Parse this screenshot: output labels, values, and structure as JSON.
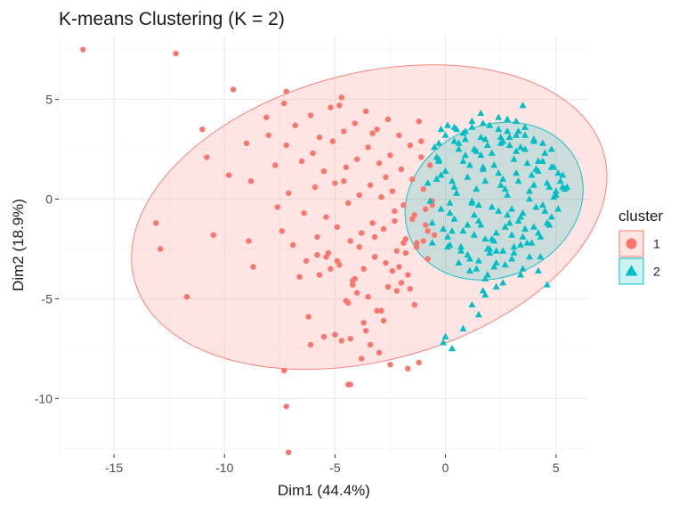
{
  "chart_data": {
    "type": "scatter",
    "title": "K-means Clustering (K = 2)",
    "xlabel": "Dim1 (44.4%)",
    "ylabel": "Dim2 (18.9%)",
    "xlim": [
      -17.5,
      6.5
    ],
    "ylim": [
      -12.8,
      8.2
    ],
    "x_ticks": [
      -15,
      -10,
      -5,
      0,
      5
    ],
    "y_ticks": [
      -10,
      -5,
      0,
      5
    ],
    "x_tick_labels": [
      "-15",
      "-10",
      "-5",
      "0",
      "5"
    ],
    "y_tick_labels": [
      "-10",
      "-5",
      "0",
      "5"
    ],
    "grid": true,
    "legend": {
      "title": "cluster",
      "position": "right",
      "entries": [
        {
          "label": "1",
          "color": "#F8766D",
          "shape": "circle"
        },
        {
          "label": "2",
          "color": "#00BFC4",
          "shape": "triangle"
        }
      ]
    },
    "colors": {
      "cluster1": "#F8766D",
      "cluster1_fill": "#F8766D",
      "cluster2": "#00BFC4",
      "cluster2_fill": "#00BFC4"
    },
    "series": [
      {
        "name": "1",
        "shape": "circle",
        "ellipse": {
          "cx": -3.45,
          "cy": -0.9,
          "rx": 11.0,
          "ry": 7.2,
          "angle_deg": -15
        },
        "x": [
          -16.4,
          -12.2,
          -13.1,
          -12.9,
          -11.7,
          -11.0,
          -10.8,
          -10.5,
          -9.6,
          -9.8,
          -8.9,
          -9.0,
          -8.8,
          -8.7,
          -8.1,
          -8.0,
          -7.7,
          -7.6,
          -7.4,
          -7.3,
          -7.2,
          -7.2,
          -7.1,
          -6.9,
          -6.8,
          -6.5,
          -6.4,
          -6.3,
          -6.1,
          -6.0,
          -5.9,
          -5.8,
          -5.7,
          -5.5,
          -5.4,
          -5.3,
          -5.2,
          -5.1,
          -5.0,
          -4.9,
          -4.8,
          -4.7,
          -4.6,
          -4.5,
          -4.4,
          -4.3,
          -4.2,
          -4.1,
          -4.0,
          -3.9,
          -3.8,
          -3.7,
          -3.6,
          -3.5,
          -3.4,
          -3.3,
          -3.2,
          -3.1,
          -3.0,
          -2.9,
          -2.8,
          -2.7,
          -2.6,
          -2.5,
          -2.4,
          -2.3,
          -2.2,
          -2.1,
          -2.0,
          -1.9,
          -1.8,
          -1.7,
          -1.6,
          -1.5,
          -1.4,
          -1.3,
          -1.2,
          -1.1,
          -1.0,
          -0.9,
          -0.8,
          -0.7,
          -0.6,
          -0.5,
          -5.2,
          -4.8,
          -4.6,
          -4.2,
          -3.9,
          -3.3,
          -2.7,
          -2.3,
          -1.9,
          -1.6,
          -1.1,
          -4.4,
          -3.6,
          -2.6,
          -6.2,
          -5.7,
          -4.1,
          -3.2,
          -2.2,
          -1.8,
          -1.4,
          -0.9,
          -5.4,
          -4.9,
          -4.0,
          -3.7,
          -3.1,
          -2.4,
          -2.0,
          -1.5,
          -6.6,
          -5.8,
          -5.0,
          -4.5,
          -3.5,
          -2.8,
          -2.1,
          -1.3,
          -0.8,
          -4.7,
          -4.3,
          -3.8,
          -3.0,
          -2.5,
          -1.7,
          -4.4,
          -3.4,
          -2.9,
          -1.2,
          -1.0,
          -0.6,
          -7.2,
          -7.1,
          -4.3,
          -7.3,
          -6.1,
          -5.5
        ],
        "y": [
          7.5,
          7.3,
          -1.2,
          -2.5,
          -4.9,
          3.5,
          2.1,
          -1.8,
          5.5,
          1.2,
          -2.1,
          2.8,
          0.9,
          -3.4,
          4.1,
          3.2,
          1.7,
          -0.4,
          -1.6,
          4.8,
          5.4,
          2.7,
          0.3,
          -2.3,
          3.7,
          1.9,
          -0.7,
          -3.1,
          4.2,
          2.3,
          0.6,
          -1.9,
          3.1,
          1.4,
          -0.9,
          -2.7,
          4.6,
          2.9,
          0.8,
          -1.4,
          -3.3,
          5.1,
          3.4,
          1.6,
          -0.2,
          -2.1,
          -4.1,
          3.8,
          2.0,
          0.2,
          -1.7,
          -3.5,
          4.4,
          2.6,
          0.7,
          -1.2,
          -2.9,
          3.5,
          1.8,
          0.1,
          -1.5,
          -3.2,
          4.0,
          2.2,
          0.4,
          -1.1,
          -2.6,
          3.2,
          1.5,
          -0.3,
          -2.0,
          -3.8,
          2.7,
          1.0,
          -0.8,
          -2.4,
          3.9,
          2.1,
          0.5,
          -1.3,
          -3.0,
          1.7,
          -0.1,
          -1.8,
          -3.5,
          4.7,
          0.9,
          -4.3,
          -2.4,
          3.3,
          1.1,
          -0.6,
          -2.2,
          -4.5,
          2.9,
          -5.2,
          -6.6,
          -4.4,
          -5.9,
          -3.8,
          -4.0,
          -1.9,
          -4.6,
          -2.7,
          -5.3,
          -0.5,
          -2.9,
          -3.1,
          -4.7,
          -6.2,
          -5.6,
          -3.6,
          -4.2,
          -1.0,
          -3.9,
          -2.8,
          -6.8,
          -5.1,
          -4.9,
          -6.1,
          -3.4,
          -2.2,
          -1.6,
          -7.1,
          -7.0,
          -8.0,
          -7.7,
          -8.3,
          -8.5,
          -9.3,
          -7.3,
          -5.6,
          -8.2,
          -2.1,
          -0.3,
          -10.4,
          -12.7,
          -9.3,
          -8.6,
          -7.3,
          -6.9
        ]
      },
      {
        "name": "2",
        "shape": "triangle",
        "ellipse": {
          "cx": 2.2,
          "cy": -0.1,
          "rx": 4.15,
          "ry": 3.8,
          "angle_deg": -25
        },
        "x": [
          -0.8,
          -0.6,
          -0.4,
          -0.2,
          0.0,
          0.2,
          0.4,
          0.6,
          0.8,
          1.0,
          1.2,
          1.4,
          1.6,
          1.8,
          2.0,
          2.2,
          2.4,
          2.6,
          2.8,
          3.0,
          3.2,
          3.4,
          3.6,
          3.8,
          4.0,
          4.2,
          4.4,
          4.6,
          4.8,
          5.0,
          5.2,
          5.4,
          -0.7,
          -0.3,
          0.1,
          0.5,
          0.9,
          1.3,
          1.7,
          2.1,
          2.5,
          2.9,
          3.3,
          3.7,
          4.1,
          4.5,
          4.9,
          5.3,
          -0.5,
          -0.1,
          0.3,
          0.7,
          1.1,
          1.5,
          1.9,
          2.3,
          2.7,
          3.1,
          3.5,
          3.9,
          4.3,
          4.7,
          5.1,
          -0.6,
          -0.2,
          0.2,
          0.6,
          1.0,
          1.4,
          1.8,
          2.2,
          2.6,
          3.0,
          3.4,
          3.8,
          4.2,
          4.6,
          5.0,
          -0.4,
          0.0,
          0.4,
          0.8,
          1.2,
          1.6,
          2.0,
          2.4,
          2.8,
          3.2,
          3.6,
          4.0,
          4.4,
          4.8,
          -0.3,
          0.1,
          0.5,
          0.9,
          1.3,
          1.7,
          2.1,
          2.5,
          2.9,
          3.3,
          3.7,
          4.1,
          4.5,
          0.2,
          0.6,
          1.0,
          1.4,
          1.8,
          2.2,
          2.6,
          3.0,
          3.4,
          3.8,
          4.2,
          0.4,
          0.8,
          1.2,
          1.6,
          2.0,
          2.4,
          2.8,
          3.2,
          3.6,
          4.0,
          0.3,
          0.7,
          1.1,
          1.5,
          1.9,
          2.3,
          2.7,
          3.1,
          3.5,
          0.5,
          0.9,
          1.3,
          1.7,
          2.1,
          2.5,
          2.9,
          3.3,
          1.1,
          1.5,
          1.9,
          2.3,
          2.7,
          3.1,
          3.5,
          3.9,
          4.3,
          1.6,
          2.0,
          2.4,
          2.8,
          3.2,
          3.6,
          4.0,
          4.4,
          4.8,
          1.8,
          2.6,
          3.4,
          4.2,
          5.5,
          5.3,
          5.1,
          4.9,
          4.7,
          1.7,
          1.2,
          -0.1,
          0.3,
          4.6,
          3.5,
          -0.2,
          0.1,
          0.4,
          1.2,
          1.5,
          1.8,
          2.3,
          0.8,
          0.0,
          -0.3
        ],
        "y": [
          0.8,
          -1.2,
          2.1,
          -0.5,
          1.4,
          -2.3,
          0.6,
          2.8,
          -1.6,
          1.1,
          -0.2,
          2.4,
          -1.3,
          0.9,
          -2.7,
          1.7,
          -0.6,
          2.9,
          0.2,
          -1.8,
          1.3,
          -0.9,
          2.5,
          0.4,
          -1.4,
          1.9,
          -0.3,
          0.8,
          1.6,
          0.2,
          0.9,
          0.5,
          -0.1,
          1.9,
          -1.9,
          0.3,
          2.2,
          -0.8,
          1.5,
          -2.0,
          0.7,
          3.1,
          -1.1,
          1.8,
          -0.4,
          2.3,
          0.1,
          0.6,
          2.6,
          -1.5,
          0.9,
          -2.6,
          1.7,
          -0.3,
          2.7,
          -1.7,
          0.5,
          2.0,
          -0.7,
          1.2,
          -1.9,
          0.6,
          1.3,
          -2.2,
          1.2,
          -0.7,
          2.5,
          -1.3,
          0.5,
          3.0,
          -2.1,
          1.0,
          -0.5,
          2.6,
          0.0,
          1.4,
          -1.2,
          0.4,
          1.0,
          3.2,
          -1.0,
          1.9,
          -0.1,
          2.2,
          -2.5,
          1.3,
          -0.8,
          2.4,
          -1.5,
          0.7,
          1.9,
          -0.9,
          2.0,
          -2.4,
          0.3,
          3.4,
          -1.8,
          1.6,
          -0.4,
          2.8,
          -1.2,
          0.9,
          -2.2,
          1.5,
          -0.6,
          -0.2,
          -3.2,
          -2.8,
          -3.5,
          -2.0,
          -3.4,
          -2.6,
          -3.0,
          -2.3,
          -2.9,
          -1.7,
          3.6,
          3.3,
          3.9,
          3.1,
          3.7,
          3.5,
          4.0,
          3.2,
          3.6,
          2.9,
          -1.6,
          -2.4,
          -3.0,
          -1.1,
          -2.5,
          -3.2,
          -1.4,
          -2.7,
          -1.9,
          3.5,
          3.0,
          2.5,
          3.8,
          2.3,
          3.1,
          2.7,
          3.4,
          -3.6,
          -3.1,
          -3.8,
          -2.6,
          -3.3,
          -2.4,
          -3.5,
          -2.2,
          -2.9,
          4.3,
          3.7,
          4.1,
          3.4,
          3.9,
          3.2,
          3.0,
          2.8,
          2.5,
          -4.0,
          -4.2,
          -3.8,
          -3.6,
          0.6,
          1.2,
          -0.5,
          1.6,
          -1.3,
          -4.6,
          -5.3,
          -7.2,
          -7.5,
          -4.3,
          4.7,
          3.5,
          3.7,
          2.9,
          3.6,
          -5.8,
          -4.8,
          -4.4,
          -6.5,
          -6.9,
          2.8
        ]
      }
    ]
  }
}
